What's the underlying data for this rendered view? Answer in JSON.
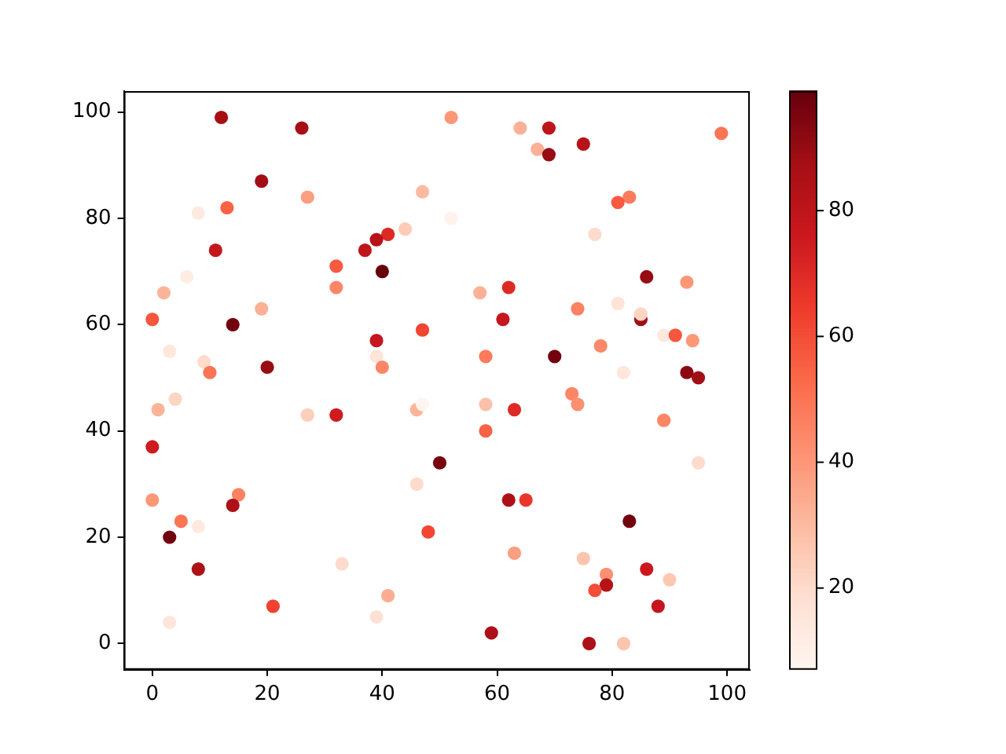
{
  "chart_data": {
    "type": "scatter",
    "x": [
      12,
      26,
      19,
      27,
      47,
      8,
      13,
      11,
      44,
      41,
      39,
      37,
      32,
      40,
      32,
      6,
      2,
      0,
      19,
      14,
      47,
      39,
      3,
      9,
      10,
      20,
      39,
      40,
      52,
      64,
      69,
      67,
      69,
      75,
      99,
      83,
      81,
      52,
      77,
      86,
      93,
      57,
      62,
      61,
      74,
      81,
      85,
      85,
      89,
      91,
      94,
      58,
      70,
      78,
      82,
      93,
      95,
      4,
      1,
      27,
      32,
      46,
      47,
      0,
      50,
      0,
      15,
      14,
      5,
      8,
      3,
      46,
      48,
      8,
      33,
      41,
      39,
      21,
      3,
      58,
      63,
      58,
      73,
      74,
      89,
      95,
      62,
      65,
      83,
      63,
      75,
      79,
      79,
      77,
      86,
      90,
      88,
      59,
      76,
      82
    ],
    "values": [
      99,
      97,
      87,
      84,
      85,
      81,
      82,
      74,
      78,
      77,
      76,
      74,
      71,
      70,
      67,
      69,
      66,
      61,
      63,
      60,
      59,
      57,
      55,
      53,
      51,
      52,
      54,
      52,
      99,
      97,
      97,
      93,
      92,
      94,
      96,
      84,
      83,
      80,
      77,
      69,
      68,
      66,
      67,
      61,
      63,
      64,
      61,
      62,
      58,
      58,
      57,
      54,
      54,
      56,
      51,
      51,
      50,
      46,
      44,
      43,
      43,
      44,
      45,
      37,
      34,
      27,
      28,
      26,
      23,
      22,
      20,
      30,
      21,
      14,
      15,
      9,
      5,
      7,
      4,
      45,
      44,
      40,
      47,
      45,
      42,
      34,
      27,
      27,
      23,
      17,
      16,
      13,
      11,
      10,
      14,
      12,
      7,
      2,
      0,
      0
    ],
    "cvalues": [
      87,
      87,
      88,
      38,
      30,
      13,
      55,
      78,
      25,
      70,
      82,
      80,
      57,
      99,
      45,
      12,
      32,
      58,
      33,
      97,
      62,
      78,
      14,
      20,
      50,
      90,
      16,
      45,
      40,
      33,
      80,
      33,
      90,
      82,
      50,
      48,
      57,
      9,
      20,
      90,
      40,
      33,
      70,
      78,
      46,
      17,
      88,
      22,
      14,
      58,
      40,
      48,
      97,
      44,
      15,
      92,
      88,
      22,
      32,
      24,
      75,
      32,
      7,
      75,
      96,
      40,
      46,
      85,
      50,
      13,
      97,
      20,
      62,
      85,
      20,
      34,
      18,
      63,
      15,
      28,
      70,
      55,
      45,
      42,
      45,
      20,
      85,
      66,
      97,
      38,
      27,
      42,
      83,
      60,
      76,
      26,
      78,
      85,
      85,
      27
    ],
    "clim": [
      7,
      99
    ],
    "cticks": [
      20,
      40,
      60,
      80
    ],
    "xlim": [
      -4.95,
      103.95
    ],
    "ylim": [
      -4.95,
      103.95
    ],
    "xticks": [
      0,
      20,
      40,
      60,
      80,
      100
    ],
    "yticks": [
      0,
      20,
      40,
      60,
      80,
      100
    ],
    "grid": false,
    "marker": "circle"
  }
}
